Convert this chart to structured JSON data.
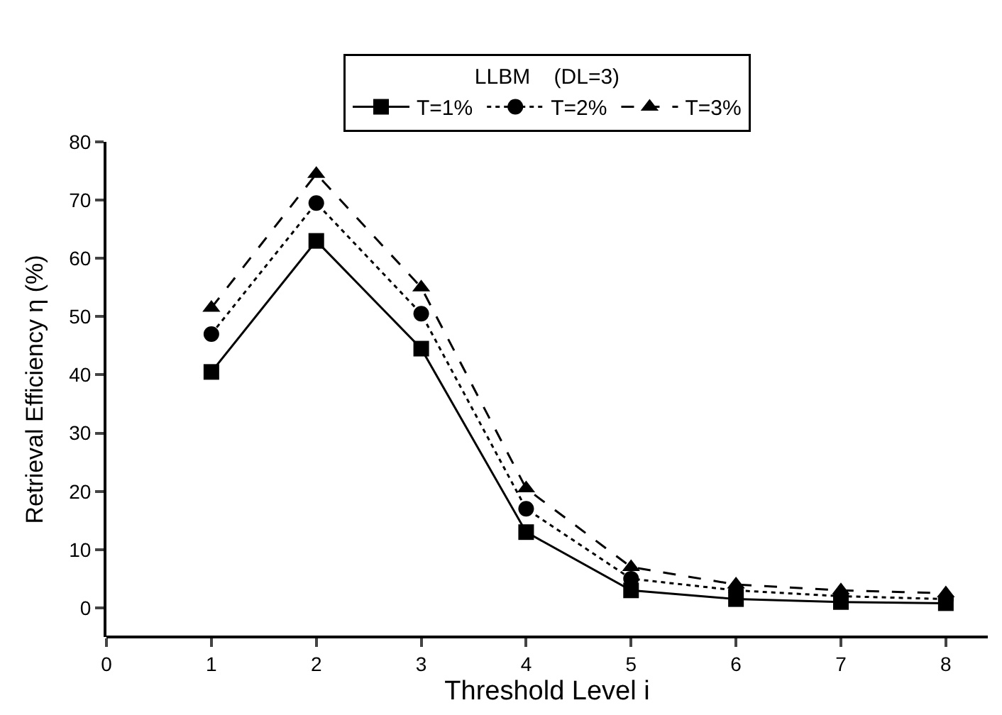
{
  "chart_data": {
    "type": "line",
    "xlabel": "Threshold Level i",
    "ylabel": "Retrieval Efficiency η (%)",
    "legend_title": "LLBM    (DL=3)",
    "x": [
      1,
      2,
      3,
      4,
      5,
      6,
      7,
      8
    ],
    "series": [
      {
        "name": "T=1%",
        "color": "#000000",
        "marker": "square",
        "line_style": "solid",
        "values": [
          40.5,
          63,
          44.5,
          13,
          3,
          1.5,
          1,
          0.8
        ]
      },
      {
        "name": "T=2%",
        "color": "#000000",
        "marker": "circle",
        "line_style": "dotted",
        "values": [
          47,
          69.5,
          50.5,
          17,
          5,
          3,
          2,
          1.5
        ]
      },
      {
        "name": "T=3%",
        "color": "#000000",
        "marker": "triangle",
        "line_style": "dashed",
        "values": [
          51.5,
          74.5,
          55,
          20.5,
          7,
          4,
          3,
          2.5
        ]
      }
    ],
    "xlim": [
      0,
      8.4
    ],
    "xticks": [
      0,
      1,
      2,
      3,
      4,
      5,
      6,
      7,
      8
    ],
    "ylim": [
      -5,
      80
    ],
    "yticks": [
      0,
      10,
      20,
      30,
      40,
      50,
      60,
      70,
      80
    ],
    "grid": false,
    "legend": "top"
  }
}
